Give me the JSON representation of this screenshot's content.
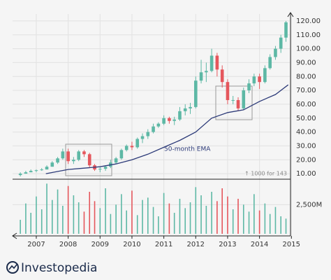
{
  "chart_data": {
    "type": "candlestick",
    "x": [
      2006.5,
      2006.67,
      2006.83,
      2007.0,
      2007.17,
      2007.33,
      2007.5,
      2007.67,
      2007.83,
      2008.0,
      2008.17,
      2008.33,
      2008.5,
      2008.67,
      2008.83,
      2009.0,
      2009.17,
      2009.33,
      2009.5,
      2009.67,
      2009.83,
      2010.0,
      2010.17,
      2010.33,
      2010.5,
      2010.67,
      2010.83,
      2011.0,
      2011.17,
      2011.33,
      2011.5,
      2011.67,
      2011.83,
      2012.0,
      2012.17,
      2012.33,
      2012.5,
      2012.67,
      2012.83,
      2013.0,
      2013.17,
      2013.33,
      2013.5,
      2013.67,
      2013.83,
      2014.0,
      2014.17,
      2014.33,
      2014.5,
      2014.67,
      2014.83
    ],
    "open": [
      9,
      10,
      11,
      12,
      12.5,
      13,
      15,
      18,
      21,
      26,
      19,
      20,
      26,
      24,
      16,
      13,
      13.5,
      15,
      18,
      21,
      27,
      30,
      29,
      35,
      37,
      40,
      44,
      46,
      50,
      48,
      49,
      55,
      57,
      58,
      77,
      83,
      84,
      95,
      85,
      76,
      63,
      63,
      57,
      70,
      75,
      80,
      76,
      86,
      94,
      100,
      108
    ],
    "close": [
      10,
      11,
      12,
      12.5,
      13,
      15,
      18,
      21,
      26,
      19,
      20,
      26,
      24,
      16,
      13,
      13.5,
      15,
      18,
      21,
      27,
      30,
      29,
      35,
      37,
      40,
      44,
      46,
      50,
      48,
      49,
      55,
      57,
      58,
      77,
      83,
      84,
      95,
      85,
      76,
      63,
      63,
      57,
      70,
      75,
      80,
      76,
      86,
      94,
      100,
      108,
      119
    ],
    "high": [
      11,
      12,
      13,
      13,
      14,
      16,
      19,
      22,
      28,
      28,
      22,
      27,
      27,
      25,
      17,
      15,
      16,
      20,
      22,
      28,
      31,
      33,
      36,
      39,
      42,
      46,
      47,
      52,
      51,
      51,
      58,
      60,
      61,
      80,
      92,
      90,
      100,
      97,
      88,
      78,
      66,
      65,
      72,
      78,
      82,
      82,
      88,
      96,
      102,
      110,
      120
    ],
    "low": [
      8,
      10,
      11,
      11,
      12,
      13,
      15,
      17,
      20,
      17,
      17,
      19,
      22,
      14,
      12,
      11,
      12,
      14,
      17,
      20,
      26,
      27,
      28,
      32,
      35,
      39,
      43,
      45,
      46,
      45,
      48,
      52,
      53,
      57,
      75,
      76,
      83,
      80,
      72,
      60,
      60,
      55,
      56,
      68,
      73,
      71,
      75,
      85,
      92,
      97,
      105
    ],
    "up_color": "#5db8a5",
    "down_color": "#e5565c",
    "xlim": [
      2006.3,
      2014.95
    ],
    "xticks": [
      2007,
      2008,
      2009,
      2010,
      2011,
      2012,
      2013,
      2014,
      2015
    ],
    "ylim": [
      5,
      125
    ],
    "yticks": [
      {
        "value": 10,
        "label": "10.00"
      },
      {
        "value": 20,
        "label": "20.00"
      },
      {
        "value": 30,
        "label": "30.00"
      },
      {
        "value": 40,
        "label": "40.00"
      },
      {
        "value": 50,
        "label": "50.00"
      },
      {
        "value": 60,
        "label": "60.00"
      },
      {
        "value": 70,
        "label": "70.00"
      },
      {
        "value": 80,
        "label": "80.00"
      },
      {
        "value": 90,
        "label": "90.00"
      },
      {
        "value": 100,
        "label": "100.00"
      },
      {
        "value": 110,
        "label": "110.00"
      },
      {
        "value": 120,
        "label": "120.00"
      }
    ],
    "ema": {
      "name": "50-month EMA",
      "color": "#2c3a78",
      "x": [
        2007.3,
        2008,
        2008.5,
        2009,
        2009.5,
        2010,
        2010.5,
        2011,
        2011.5,
        2012,
        2012.5,
        2013,
        2013.5,
        2014,
        2014.5,
        2014.9
      ],
      "values": [
        10,
        13,
        14,
        15,
        17,
        20,
        24,
        29,
        34,
        40,
        50,
        54,
        56,
        62,
        67,
        74
      ]
    },
    "annotation": "↑ 1000 for 143",
    "volume": {
      "values": [
        1200,
        2600,
        1800,
        3200,
        2100,
        4300,
        2900,
        3800,
        2400,
        4100,
        3300,
        2700,
        1900,
        3600,
        2800,
        2200,
        3900,
        1700,
        2500,
        3400,
        2000,
        3700,
        1600,
        2900,
        3100,
        2300,
        1500,
        3500,
        2600,
        1800,
        3000,
        2200,
        2700,
        4000,
        3300,
        2400,
        3600,
        2800,
        3900,
        3200,
        2100,
        3000,
        2500,
        1900,
        3400,
        2000,
        2600,
        1700,
        2300,
        1500,
        1300
      ],
      "ylim": [
        0,
        4500
      ],
      "yticks": [
        {
          "value": 2500,
          "label": "2,500M"
        }
      ]
    }
  },
  "brand": "Investopedia"
}
